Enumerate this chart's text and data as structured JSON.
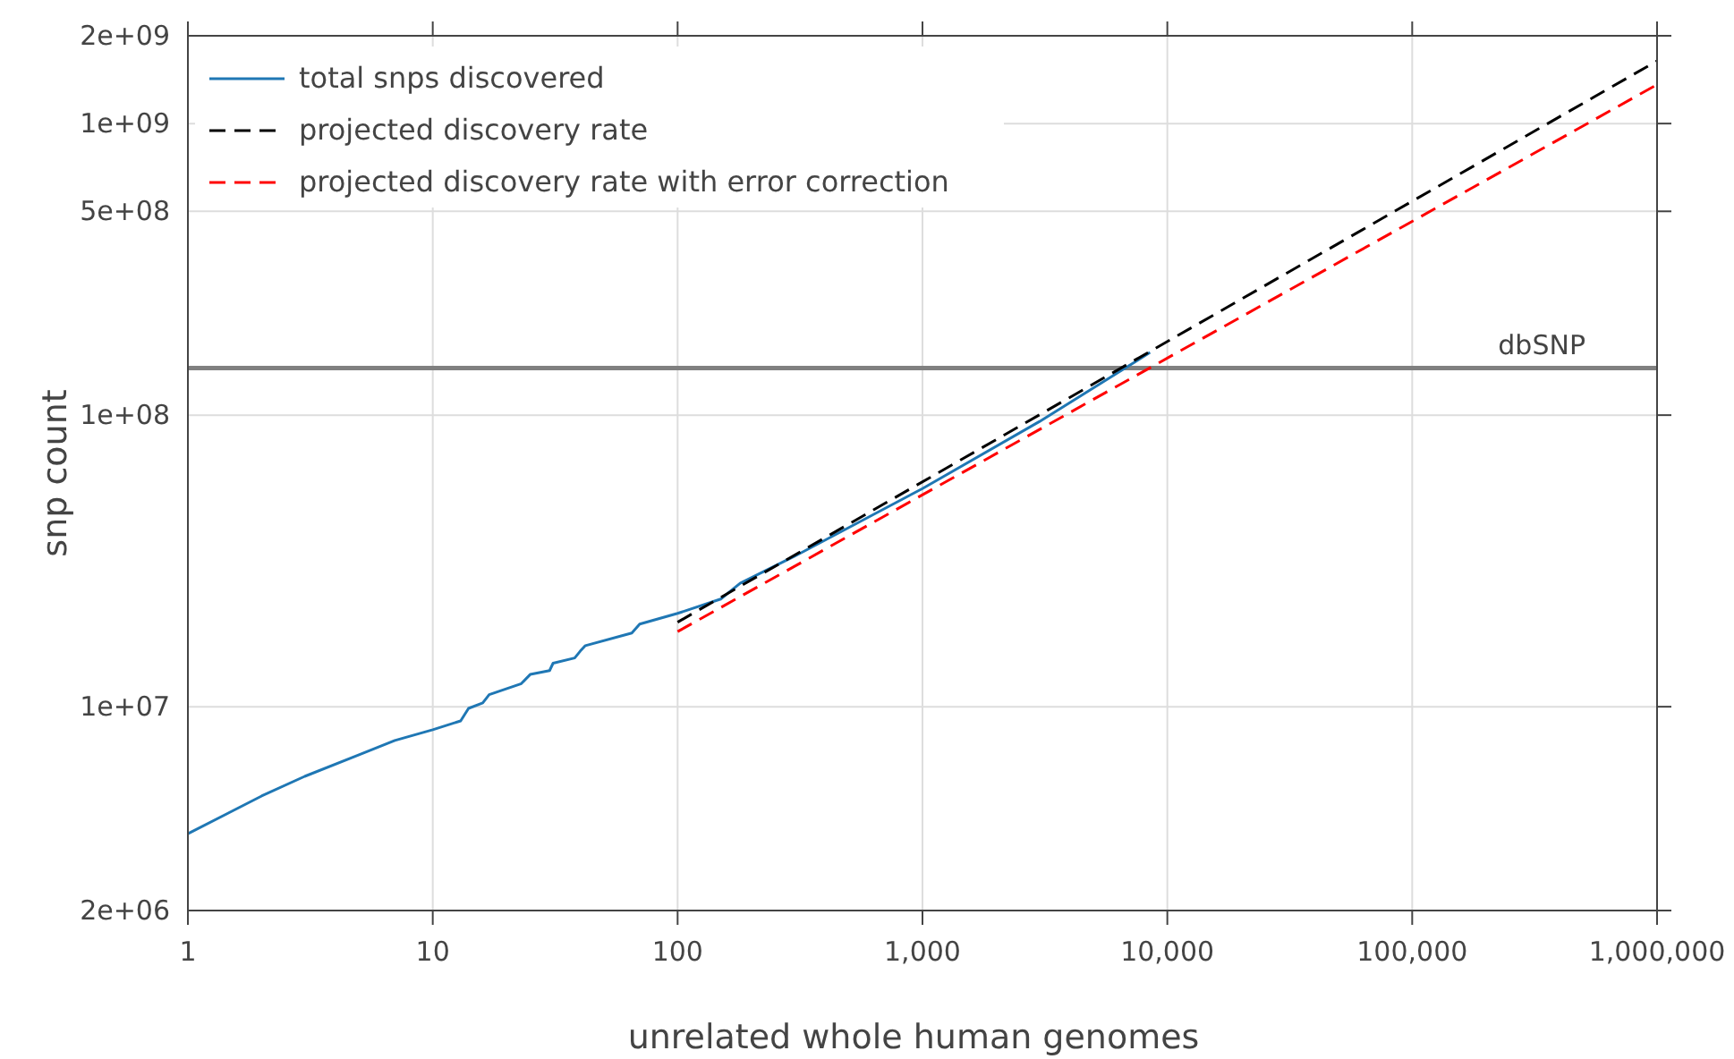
{
  "chart_data": {
    "type": "line",
    "xlabel": "unrelated whole human genomes",
    "ylabel": "snp count",
    "log": "xy",
    "grid": true,
    "legend": "top left",
    "xlim": [
      1,
      1000000
    ],
    "ylim": [
      2000000,
      2000000000
    ],
    "xticks": [
      {
        "value": 1,
        "label": "1"
      },
      {
        "value": 10,
        "label": "10"
      },
      {
        "value": 100,
        "label": "100"
      },
      {
        "value": 1000,
        "label": "1,000"
      },
      {
        "value": 10000,
        "label": "10,000"
      },
      {
        "value": 100000,
        "label": "100,000"
      },
      {
        "value": 1000000,
        "label": "1,000,000"
      }
    ],
    "yticks": [
      {
        "value": 2000000,
        "label": "2e+06"
      },
      {
        "value": 10000000,
        "label": "1e+07"
      },
      {
        "value": 100000000,
        "label": "1e+08"
      },
      {
        "value": 500000000,
        "label": "5e+08"
      },
      {
        "value": 1000000000,
        "label": "1e+09"
      },
      {
        "value": 2000000000,
        "label": "2e+09"
      }
    ],
    "ref_lines": [
      {
        "axis": "y",
        "value": 145000000,
        "label": "dbSNP",
        "color": "#808080"
      }
    ],
    "series": [
      {
        "name": "total snps discovered",
        "color": "#1f77b4",
        "line_style": "solid",
        "x": [
          1,
          2,
          3,
          5,
          7,
          10,
          13,
          14,
          16,
          17,
          23,
          25,
          30,
          31,
          38,
          40,
          42,
          65,
          70,
          100,
          150,
          180,
          300,
          1000,
          3000,
          8500
        ],
        "values": [
          3670000,
          4940000,
          5770000,
          6840000,
          7660000,
          8340000,
          8940000,
          9870000,
          10300000,
          11000000,
          12000000,
          12900000,
          13300000,
          14100000,
          14700000,
          15500000,
          16200000,
          17900000,
          19200000,
          20900000,
          23400000,
          26500000,
          32800000,
          56000000,
          95000000,
          164000000
        ]
      },
      {
        "name": "projected discovery rate",
        "color": "#000000",
        "line_style": "dashed",
        "x": [
          100,
          1000000
        ],
        "values": [
          19500000,
          1640000000
        ]
      },
      {
        "name": "projected discovery rate with error correction",
        "color": "#ff0000",
        "line_style": "dashed",
        "x": [
          100,
          1000000
        ],
        "values": [
          18100000,
          1360000000
        ]
      }
    ]
  }
}
